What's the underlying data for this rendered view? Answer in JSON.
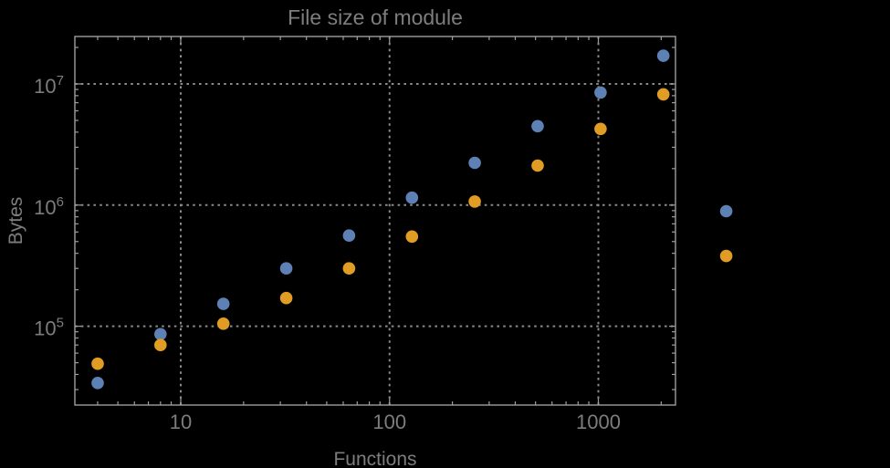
{
  "colors": {
    "background": "#000000",
    "frame": "#9E9E9E",
    "gridlines": "#8A8A8A",
    "text": "#7D7D7D",
    "series1": "#5E81B5",
    "series2": "#E19C24"
  },
  "chart_data": {
    "type": "scatter",
    "title": "File size of module",
    "xlabel": "Functions",
    "ylabel": "Bytes",
    "x_scale": "log",
    "y_scale": "log",
    "grid": "dotted",
    "x_range": [
      3.2,
      2340
    ],
    "y_range": [
      21900,
      24600000
    ],
    "x_ticks": [
      {
        "label": "10",
        "value": 10
      },
      {
        "label": "100",
        "value": 100
      },
      {
        "label": "1000",
        "value": 1000
      }
    ],
    "y_ticks": [
      {
        "base": "10",
        "exp": "5",
        "value": 100000
      },
      {
        "base": "10",
        "exp": "6",
        "value": 1000000
      },
      {
        "base": "10",
        "exp": "7",
        "value": 10000000
      }
    ],
    "series": [
      {
        "name": "series-1-blue",
        "color": "#5E81B5",
        "x": [
          4,
          8,
          16,
          32,
          64,
          128,
          256,
          512,
          1024,
          2048,
          4096
        ],
        "y": [
          34000,
          86000,
          153000,
          300000,
          560000,
          1150000,
          2230000,
          4480000,
          8500000,
          17100000,
          890000
        ]
      },
      {
        "name": "series-2-orange",
        "color": "#E19C24",
        "x": [
          4,
          8,
          16,
          32,
          64,
          128,
          256,
          512,
          1024,
          2048,
          4096
        ],
        "y": [
          49000,
          70000,
          105000,
          171000,
          300000,
          550000,
          1070000,
          2120000,
          4250000,
          8200000,
          380000
        ]
      }
    ]
  }
}
